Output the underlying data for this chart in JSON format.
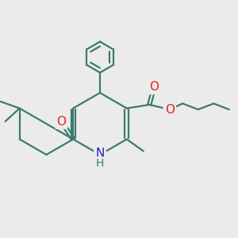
{
  "bg_color": "#ebebeb",
  "bond_color": "#3d7a6e",
  "bond_width": 1.6,
  "atom_colors": {
    "O": "#e8251a",
    "N": "#2020cc",
    "H": "#3d7a6e",
    "C": "#3d7a6e"
  },
  "font_size": 10,
  "fig_size": [
    3.0,
    3.0
  ],
  "dpi": 100,
  "xlim": [
    0,
    10
  ],
  "ylim": [
    0,
    10
  ]
}
